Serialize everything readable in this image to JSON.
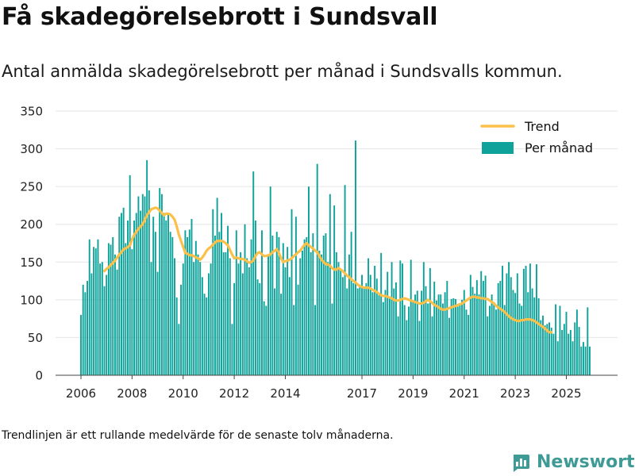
{
  "title": "Få skadegörelsebrott i Sundsvall",
  "subtitle": "Antal anmälda skadegörelsebrott per månad i Sundsvalls kommun.",
  "footnote": "Trendlinjen är ett rullande medelvärde för de senaste tolv månaderna.",
  "brand": "Newsworthy",
  "colors": {
    "bars": "#0fa29a",
    "trend": "#fbc04a",
    "grid": "#e5e5e5",
    "text": "#111111",
    "brand": "#3d9a94"
  },
  "chart_data": {
    "type": "bar",
    "x_start": "2006-01",
    "ylim": [
      0,
      350
    ],
    "y_ticks": [
      0,
      50,
      100,
      150,
      200,
      250,
      300,
      350
    ],
    "x_ticks": [
      "2006",
      "2008",
      "2010",
      "2012",
      "2014",
      "2017",
      "2019",
      "2021",
      "2023",
      "2025"
    ],
    "legend": {
      "position": "top-right"
    },
    "series": [
      {
        "name": "Per månad",
        "kind": "bar",
        "start": "2006-01",
        "values": [
          80,
          120,
          110,
          125,
          180,
          135,
          170,
          168,
          180,
          148,
          150,
          118,
          133,
          175,
          173,
          183,
          160,
          140,
          210,
          215,
          222,
          175,
          205,
          265,
          167,
          205,
          215,
          237,
          218,
          240,
          237,
          285,
          245,
          150,
          210,
          190,
          137,
          248,
          240,
          215,
          205,
          215,
          190,
          183,
          155,
          103,
          68,
          120,
          148,
          192,
          183,
          193,
          207,
          150,
          178,
          160,
          150,
          130,
          108,
          103,
          135,
          148,
          220,
          185,
          235,
          190,
          215,
          163,
          163,
          198,
          155,
          68,
          122,
          192,
          148,
          163,
          135,
          200,
          155,
          143,
          180,
          270,
          205,
          127,
          122,
          192,
          98,
          92,
          160,
          250,
          185,
          115,
          190,
          183,
          108,
          175,
          143,
          170,
          130,
          220,
          93,
          210,
          120,
          155,
          165,
          180,
          183,
          250,
          163,
          188,
          93,
          280,
          165,
          160,
          185,
          188,
          150,
          240,
          95,
          225,
          163,
          150,
          140,
          130,
          252,
          115,
          160,
          190,
          122,
          311,
          115,
          120,
          133,
          115,
          122,
          155,
          133,
          110,
          145,
          128,
          106,
          162,
          97,
          113,
          137,
          102,
          150,
          115,
          123,
          78,
          152,
          148,
          93,
          73,
          91,
          153,
          97,
          107,
          112,
          72,
          112,
          150,
          118,
          95,
          142,
          78,
          124,
          99,
          107,
          107,
          95,
          110,
          125,
          76,
          101,
          102,
          101,
          91,
          94,
          100,
          113,
          87,
          80,
          133,
          117,
          108,
          126,
          107,
          138,
          125,
          132,
          78,
          92,
          107,
          97,
          87,
          122,
          125,
          145,
          93,
          135,
          150,
          130,
          113,
          109,
          135,
          95,
          92,
          141,
          145,
          110,
          148,
          115,
          103,
          147,
          102,
          73,
          79,
          66,
          68,
          70,
          63,
          55,
          94,
          45,
          92,
          60,
          68,
          84,
          55,
          60,
          45,
          70,
          87,
          64,
          38,
          44,
          38,
          90,
          38
        ]
      },
      {
        "name": "Trend",
        "kind": "line",
        "start": "2006-12",
        "values": [
          138,
          141,
          143,
          146,
          149,
          152,
          156,
          160,
          163,
          167,
          168,
          170,
          172,
          180,
          186,
          190,
          194,
          197,
          200,
          206,
          212,
          216,
          220,
          221,
          222,
          221,
          218,
          215,
          212,
          214,
          214,
          213,
          210,
          206,
          197,
          186,
          178,
          170,
          162,
          161,
          159,
          159,
          158,
          156,
          155,
          153,
          156,
          160,
          165,
          168,
          170,
          173,
          176,
          178,
          178,
          178,
          177,
          175,
          172,
          166,
          160,
          155,
          156,
          155,
          154,
          154,
          153,
          151,
          149,
          150,
          152,
          158,
          162,
          163,
          160,
          158,
          158,
          159,
          160,
          163,
          165,
          167,
          162,
          155,
          150,
          151,
          152,
          153,
          155,
          158,
          160,
          163,
          165,
          169,
          173,
          175,
          172,
          170,
          168,
          165,
          163,
          158,
          153,
          150,
          147,
          147,
          145,
          142,
          140,
          140,
          142,
          140,
          138,
          135,
          132,
          130,
          127,
          125,
          123,
          120,
          118,
          117,
          116,
          116,
          116,
          115,
          113,
          112,
          110,
          108,
          106,
          105,
          105,
          104,
          103,
          102,
          100,
          99,
          99,
          100,
          101,
          102,
          101,
          100,
          99,
          98,
          97,
          96,
          95,
          95,
          96,
          98,
          100,
          98,
          96,
          93,
          92,
          90,
          88,
          87,
          87,
          88,
          89,
          90,
          91,
          92,
          93,
          94,
          95,
          97,
          99,
          101,
          103,
          104,
          104,
          103,
          103,
          102,
          102,
          101,
          101,
          99,
          97,
          95,
          92,
          90,
          88,
          86,
          84,
          81,
          78,
          76,
          74,
          73,
          72,
          72,
          73,
          73,
          74,
          74,
          74,
          73,
          72,
          70,
          68,
          66,
          64,
          62,
          59,
          57,
          57
        ]
      }
    ]
  }
}
